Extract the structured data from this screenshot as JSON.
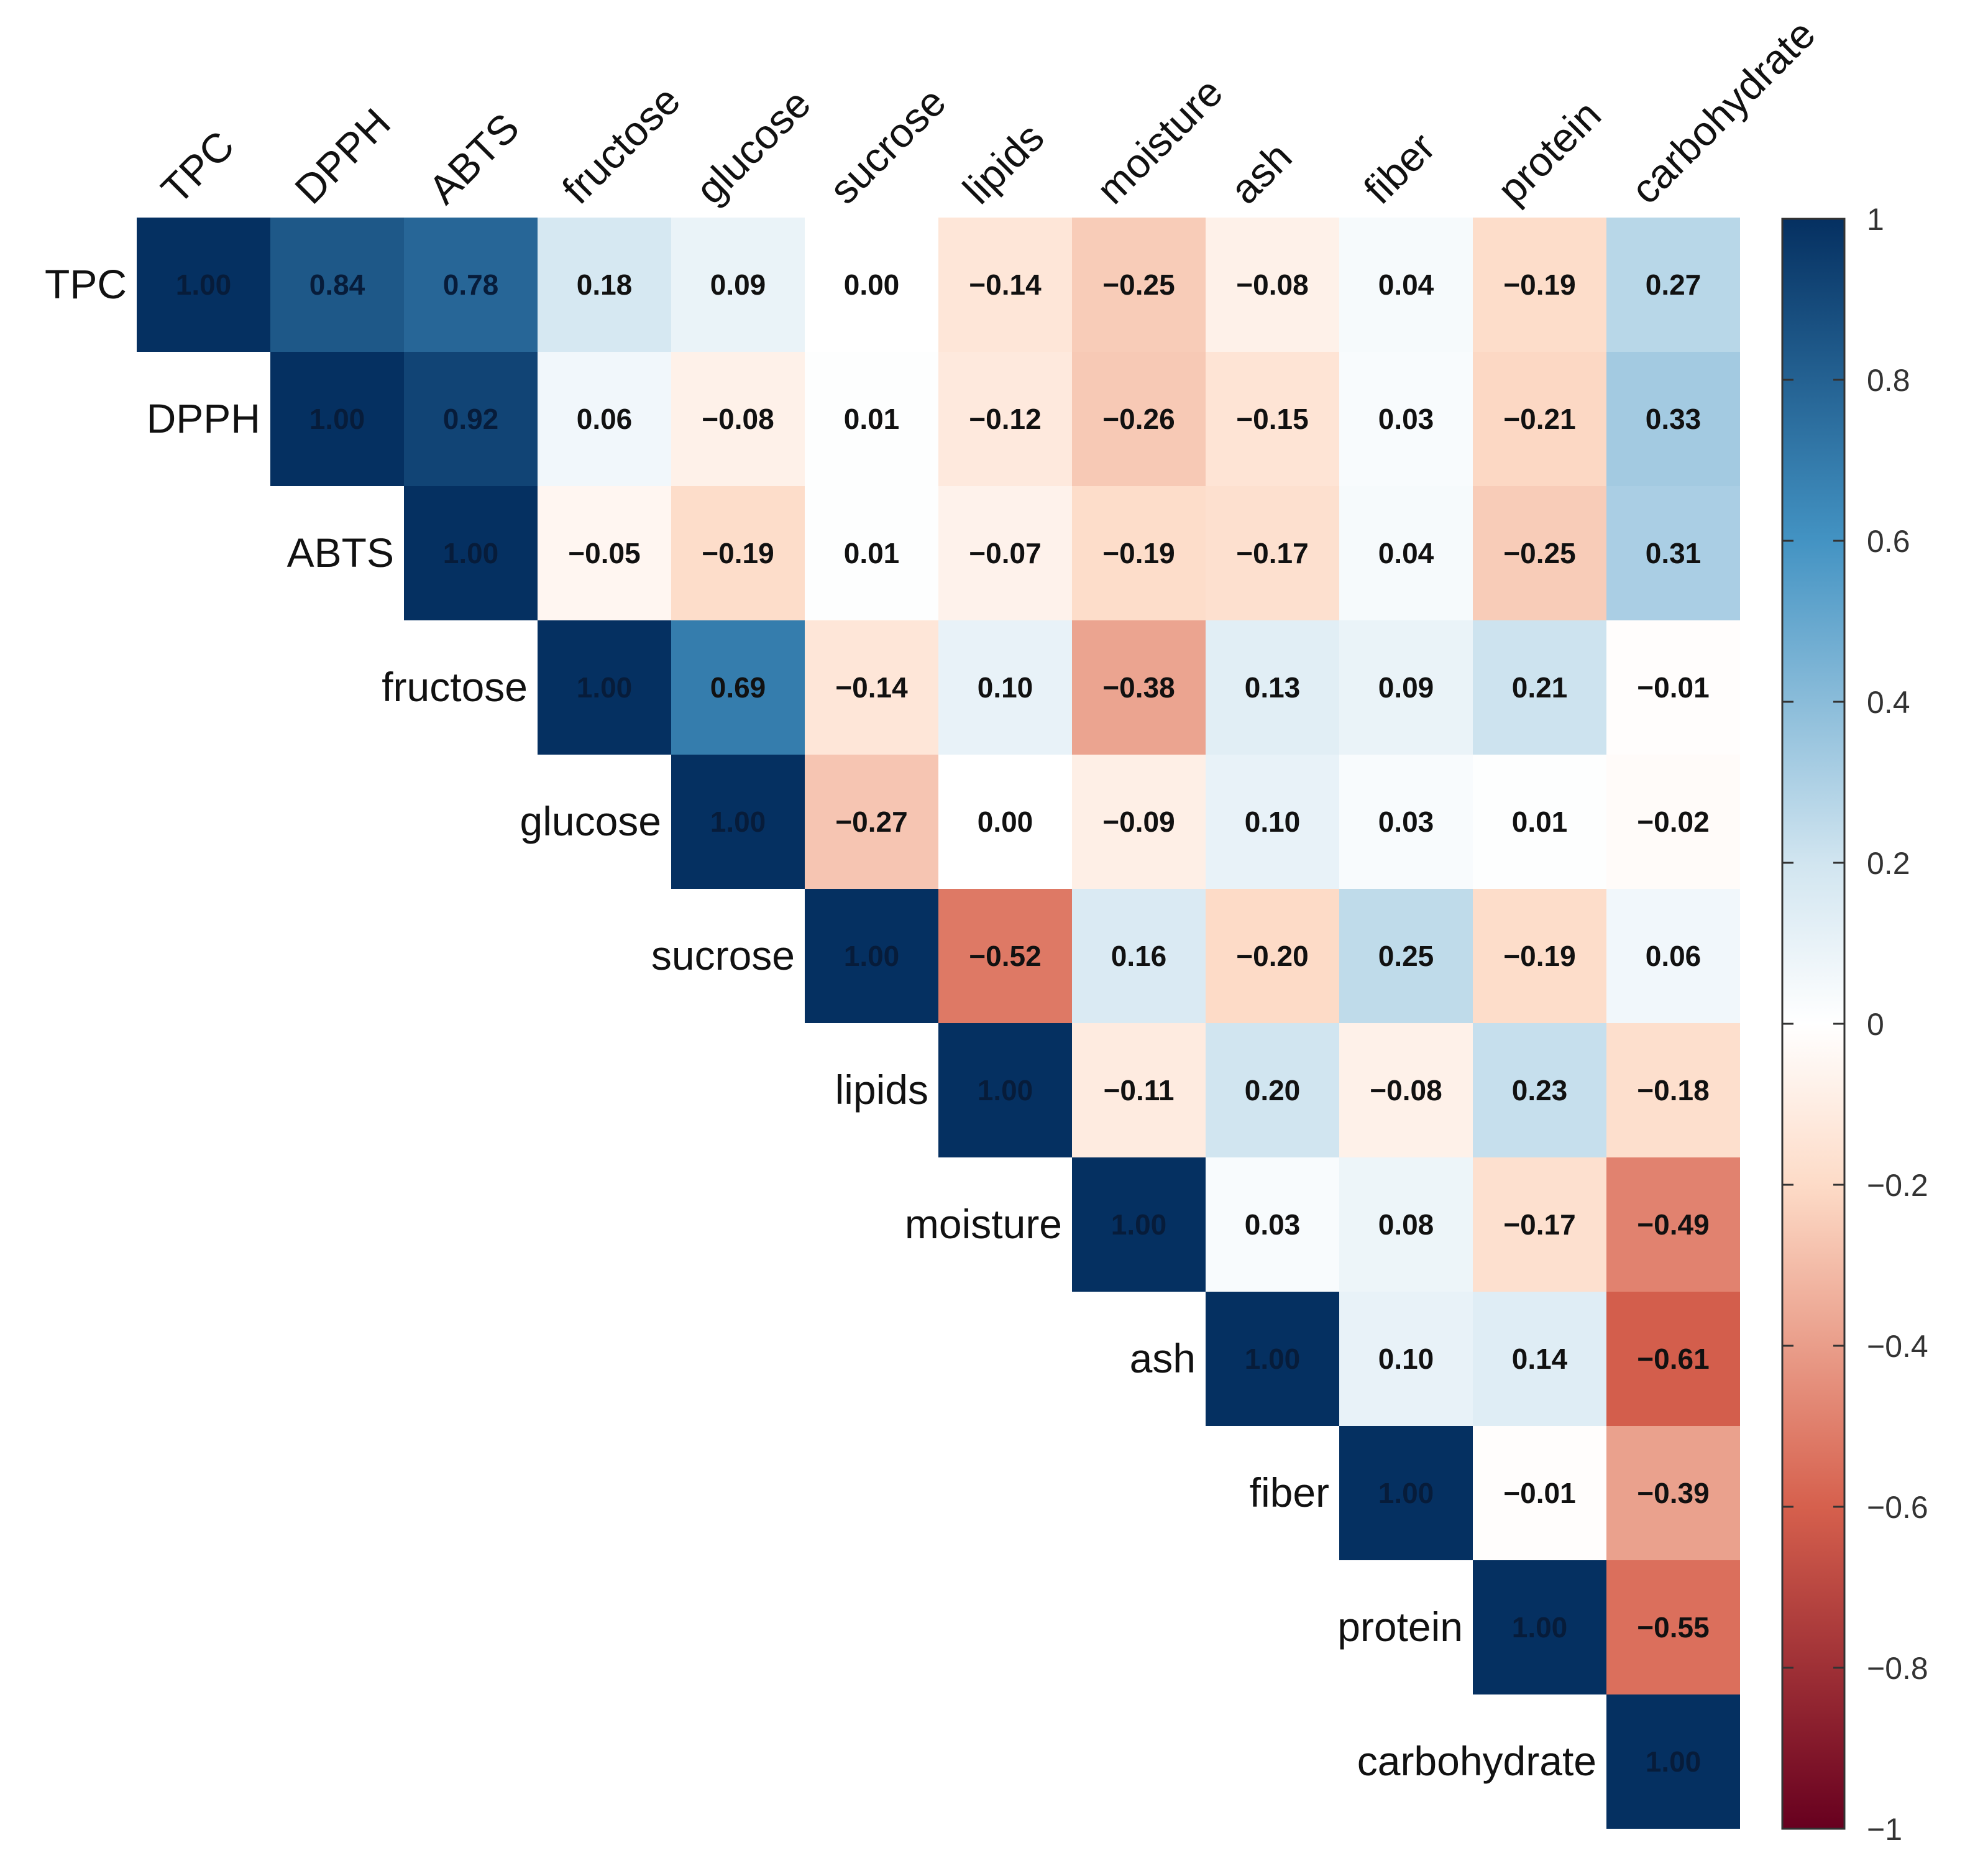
{
  "chart_data": {
    "type": "heatmap",
    "title": "",
    "layout": "upper-triangle correlation matrix",
    "variables": [
      "TPC",
      "DPPH",
      "ABTS",
      "fructose",
      "glucose",
      "sucrose",
      "lipids",
      "moisture",
      "ash",
      "fiber",
      "protein",
      "carbohydrate"
    ],
    "value_labels": [
      [
        "1.00",
        "0.84",
        "0.78",
        "0.18",
        "0.09",
        "0.00",
        "−0.14",
        "−0.25",
        "−0.08",
        "0.04",
        "−0.19",
        "0.27"
      ],
      [
        "",
        "1.00",
        "0.92",
        "0.06",
        "−0.08",
        "0.01",
        "−0.12",
        "−0.26",
        "−0.15",
        "0.03",
        "−0.21",
        "0.33"
      ],
      [
        "",
        "",
        "1.00",
        "−0.05",
        "−0.19",
        "0.01",
        "−0.07",
        "−0.19",
        "−0.17",
        "0.04",
        "−0.25",
        "0.31"
      ],
      [
        "",
        "",
        "",
        "1.00",
        "0.69",
        "−0.14",
        "0.10",
        "−0.38",
        "0.13",
        "0.09",
        "0.21",
        "−0.01"
      ],
      [
        "",
        "",
        "",
        "",
        "1.00",
        "−0.27",
        "0.00",
        "−0.09",
        "0.10",
        "0.03",
        "0.01",
        "−0.02"
      ],
      [
        "",
        "",
        "",
        "",
        "",
        "1.00",
        "−0.52",
        "0.16",
        "−0.20",
        "0.25",
        "−0.19",
        "0.06"
      ],
      [
        "",
        "",
        "",
        "",
        "",
        "",
        "1.00",
        "−0.11",
        "0.20",
        "−0.08",
        "0.23",
        "−0.18"
      ],
      [
        "",
        "",
        "",
        "",
        "",
        "",
        "",
        "1.00",
        "0.03",
        "0.08",
        "−0.17",
        "−0.49"
      ],
      [
        "",
        "",
        "",
        "",
        "",
        "",
        "",
        "",
        "1.00",
        "0.10",
        "0.14",
        "−0.61"
      ],
      [
        "",
        "",
        "",
        "",
        "",
        "",
        "",
        "",
        "",
        "1.00",
        "−0.01",
        "−0.39"
      ],
      [
        "",
        "",
        "",
        "",
        "",
        "",
        "",
        "",
        "",
        "",
        "1.00",
        "−0.55"
      ],
      [
        "",
        "",
        "",
        "",
        "",
        "",
        "",
        "",
        "",
        "",
        "",
        "1.00"
      ]
    ],
    "colorbar": {
      "range": [
        -1,
        1
      ],
      "tick_labels": [
        "1",
        "0.8",
        "0.6",
        "0.4",
        "0.2",
        "0",
        "−0.2",
        "−0.4",
        "−0.6",
        "−0.8",
        "−1"
      ]
    },
    "colors": {
      "strong_negative": "#67001f",
      "negative": "#d6604d",
      "weak_negative": "#fddbc7",
      "neutral": "#ffffff",
      "weak_positive": "#d1e5f0",
      "positive": "#4393c3",
      "strong_positive": "#053061"
    }
  }
}
